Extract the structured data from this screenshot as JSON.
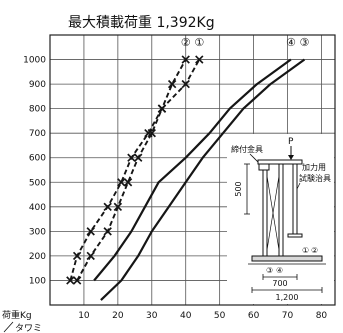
{
  "chart_data": {
    "type": "line",
    "title": "最大積載荷重 1,392Kg",
    "xlabel": "タワミ",
    "ylabel": "荷重Kg",
    "xlim": [
      0,
      84
    ],
    "ylim": [
      0,
      1100
    ],
    "x_ticks": [
      10,
      20,
      30,
      40,
      50,
      60,
      70,
      80
    ],
    "y_ticks": [
      100,
      200,
      300,
      400,
      500,
      600,
      700,
      800,
      900,
      1000
    ],
    "grid": true,
    "series": [
      {
        "name": "①",
        "dashed": true,
        "markers": true,
        "points": [
          [
            8,
            100
          ],
          [
            12,
            200
          ],
          [
            17,
            300
          ],
          [
            20,
            400
          ],
          [
            23,
            500
          ],
          [
            26,
            600
          ],
          [
            30,
            700
          ],
          [
            33,
            800
          ],
          [
            40,
            900
          ],
          [
            44,
            1000
          ]
        ]
      },
      {
        "name": "②",
        "dashed": true,
        "markers": true,
        "points": [
          [
            6,
            100
          ],
          [
            8,
            200
          ],
          [
            12,
            300
          ],
          [
            17,
            400
          ],
          [
            21,
            500
          ],
          [
            24,
            600
          ],
          [
            29,
            700
          ],
          [
            33,
            800
          ],
          [
            36,
            900
          ],
          [
            40,
            1000
          ]
        ]
      },
      {
        "name": "③",
        "dashed": false,
        "markers": false,
        "points": [
          [
            15,
            20
          ],
          [
            21,
            100
          ],
          [
            26,
            200
          ],
          [
            30,
            300
          ],
          [
            35,
            400
          ],
          [
            40,
            500
          ],
          [
            45,
            600
          ],
          [
            51,
            700
          ],
          [
            57,
            800
          ],
          [
            65,
            900
          ],
          [
            75,
            1000
          ]
        ]
      },
      {
        "name": "④",
        "dashed": false,
        "markers": false,
        "points": [
          [
            13,
            100
          ],
          [
            19,
            200
          ],
          [
            24,
            300
          ],
          [
            28,
            400
          ],
          [
            32,
            500
          ],
          [
            40,
            600
          ],
          [
            47,
            700
          ],
          [
            53,
            800
          ],
          [
            61,
            900
          ],
          [
            71,
            1000
          ]
        ]
      }
    ]
  },
  "inset_diagram": {
    "clamp_label": "締付金具",
    "load_label": "P",
    "jig_label_1": "加力用",
    "jig_label_2": "試験治具",
    "height_dim": "500",
    "position_labels": [
      "①",
      "②",
      "③",
      "④"
    ],
    "width_dim_inner": "700",
    "width_dim_outer": "1,200"
  }
}
